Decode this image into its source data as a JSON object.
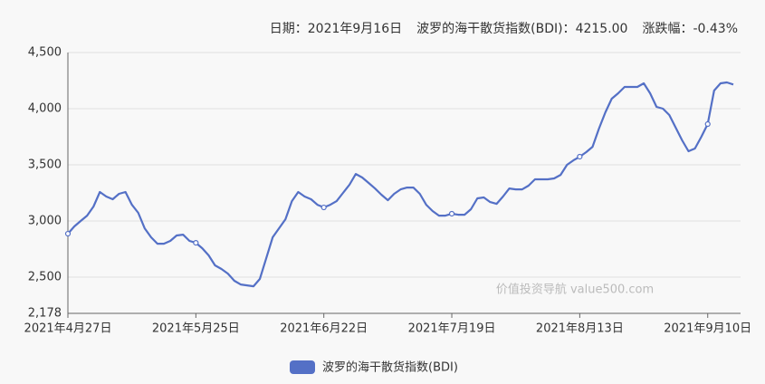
{
  "chart_data": {
    "type": "line",
    "header": [
      {
        "label": "日期：",
        "value": "2021年9月16日"
      },
      {
        "label": "波罗的海干散货指数(BDI)：",
        "value": "4215.00"
      },
      {
        "label": "涨跌幅：",
        "value": "-0.43%"
      }
    ],
    "watermark": "价值投资导航 value500.com",
    "categories": [
      "2021年4月27日",
      null,
      null,
      null,
      null,
      null,
      null,
      null,
      null,
      null,
      null,
      null,
      null,
      null,
      null,
      null,
      null,
      null,
      null,
      null,
      "2021年5月25日",
      null,
      null,
      null,
      null,
      null,
      null,
      null,
      null,
      null,
      null,
      null,
      null,
      null,
      null,
      null,
      null,
      null,
      null,
      null,
      "2021年6月22日",
      null,
      null,
      null,
      null,
      null,
      null,
      null,
      null,
      null,
      null,
      null,
      null,
      null,
      null,
      null,
      null,
      null,
      null,
      null,
      "2021年7月19日",
      null,
      null,
      null,
      null,
      null,
      null,
      null,
      null,
      null,
      null,
      null,
      null,
      null,
      null,
      null,
      null,
      null,
      null,
      null,
      "2021年8月13日",
      null,
      null,
      null,
      null,
      null,
      null,
      null,
      null,
      null,
      null,
      null,
      null,
      null,
      null,
      null,
      null,
      null,
      null,
      null,
      "2021年9月10日",
      null,
      null,
      null,
      null
    ],
    "series": [
      {
        "name": "波罗的海干散货指数(BDI)",
        "color": "#5470c6",
        "values": [
          2887,
          2952,
          3000,
          3048,
          3129,
          3258,
          3218,
          3194,
          3242,
          3258,
          3145,
          3073,
          2935,
          2855,
          2798,
          2798,
          2823,
          2871,
          2879,
          2823,
          2806,
          2758,
          2694,
          2605,
          2573,
          2532,
          2468,
          2435,
          2427,
          2419,
          2484,
          2669,
          2855,
          2935,
          3016,
          3177,
          3258,
          3218,
          3194,
          3145,
          3121,
          3145,
          3177,
          3250,
          3323,
          3419,
          3387,
          3339,
          3290,
          3234,
          3185,
          3242,
          3282,
          3298,
          3298,
          3242,
          3145,
          3089,
          3048,
          3048,
          3065,
          3056,
          3056,
          3105,
          3202,
          3210,
          3169,
          3153,
          3218,
          3290,
          3282,
          3282,
          3315,
          3371,
          3371,
          3371,
          3379,
          3411,
          3500,
          3540,
          3573,
          3613,
          3661,
          3823,
          3968,
          4089,
          4137,
          4194,
          4194,
          4194,
          4226,
          4137,
          4016,
          4000,
          3944,
          3831,
          3718,
          3621,
          3645,
          3750,
          3863,
          4161,
          4226,
          4234,
          4215
        ]
      }
    ],
    "ylim": [
      2178,
      4500
    ],
    "yticks": [
      {
        "value": 2178,
        "label": "2,178"
      },
      {
        "value": 2500,
        "label": "2,500"
      },
      {
        "value": 3000,
        "label": "3,000"
      },
      {
        "value": 3500,
        "label": "3,500"
      },
      {
        "value": 4000,
        "label": "4,000"
      },
      {
        "value": 4500,
        "label": "4,500"
      }
    ],
    "grid": true
  }
}
